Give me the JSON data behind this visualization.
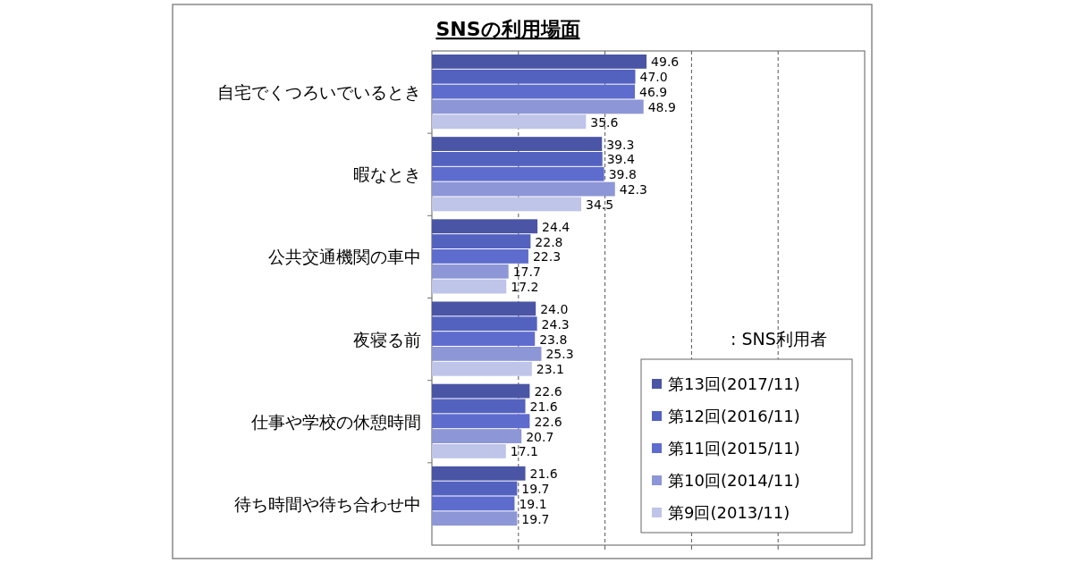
{
  "chart_data": {
    "type": "bar",
    "orientation": "horizontal",
    "title": "SNSの利用場面",
    "categories": [
      "自宅でくつろいでいるとき",
      "暇なとき",
      "公共交通機関の車中",
      "夜寝る前",
      "仕事や学校の休憩時間",
      "待ち時間や待ち合わせ中"
    ],
    "series": [
      {
        "name": "第13回(2017/11)",
        "color": "#4a55a6",
        "values": [
          49.6,
          39.3,
          24.4,
          24.0,
          22.6,
          21.6
        ],
        "value_labels": [
          "49.6",
          "39.3",
          "24.4",
          "24.0",
          "22.6",
          "21.6"
        ]
      },
      {
        "name": "第12回(2016/11)",
        "color": "#5462bf",
        "values": [
          47.0,
          39.4,
          22.8,
          24.3,
          21.6,
          19.7
        ],
        "value_labels": [
          "47.0",
          "39.4",
          "22.8",
          "24.3",
          "21.6",
          "19.7"
        ]
      },
      {
        "name": "第11回(2015/11)",
        "color": "#5e6ccd",
        "values": [
          46.9,
          39.8,
          22.3,
          23.8,
          22.6,
          19.1
        ],
        "value_labels": [
          "46.9",
          "39.8",
          "22.3",
          "23.8",
          "22.6",
          "19.1"
        ]
      },
      {
        "name": "第10回(2014/11)",
        "color": "#8d96d6",
        "values": [
          48.9,
          42.3,
          17.7,
          25.3,
          20.7,
          19.7
        ],
        "value_labels": [
          "48.9",
          "42.3",
          "17.7",
          "25.3",
          "20.7",
          "19.7"
        ]
      },
      {
        "name": "第9回(2013/11)",
        "color": "#bfc4e9",
        "values": [
          35.6,
          34.5,
          17.2,
          23.1,
          17.1,
          null
        ],
        "value_labels": [
          "35.6",
          "34.5",
          "17.2",
          "23.1",
          "17.1",
          null
        ]
      }
    ],
    "xlim": [
      0,
      100
    ],
    "xticks": [
      {
        "value": 20,
        "label": null
      },
      {
        "value": 40,
        "label": null
      },
      {
        "value": 60,
        "label": null
      },
      {
        "value": 80,
        "label": null
      }
    ],
    "grid": "x",
    "legend": "bottom right",
    "annotations": [
      ": SNS利用者"
    ]
  }
}
